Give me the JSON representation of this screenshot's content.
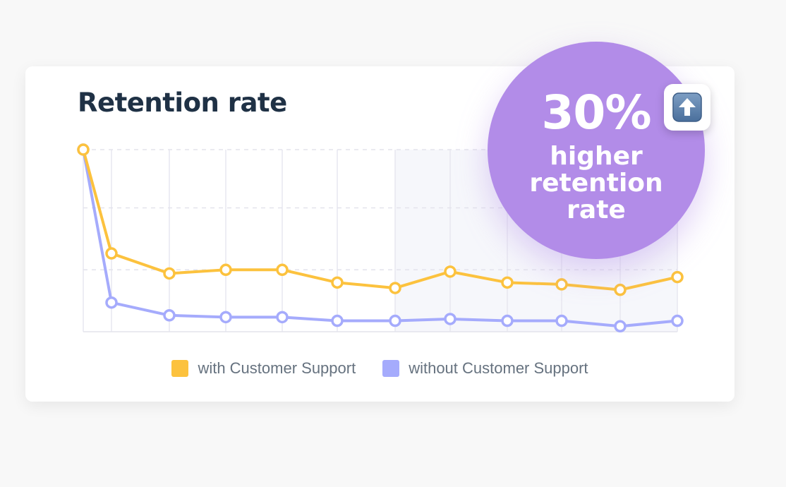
{
  "title": "Retention rate",
  "highlight": {
    "percent": "30%",
    "line1": "higher",
    "line2": "retention",
    "line3": "rate",
    "icon": "up-arrow-icon"
  },
  "colors": {
    "with_support": "#fcc23e",
    "without_support": "#a5abfc",
    "bubble": "#b28ce8",
    "title": "#1f3145"
  },
  "chart_data": {
    "type": "line",
    "title": "Retention rate",
    "xlabel": "",
    "ylabel": "",
    "x": [
      0,
      1,
      2,
      3,
      4,
      5,
      6,
      7,
      8,
      9,
      10,
      11
    ],
    "ylim": [
      0,
      100
    ],
    "grid": true,
    "legend": "bottom",
    "series": [
      {
        "name": "with Customer Support",
        "values": [
          100,
          43,
          32,
          34,
          34,
          27,
          24,
          33,
          27,
          26,
          23,
          30
        ]
      },
      {
        "name": "without Customer Support",
        "values": [
          100,
          16,
          9,
          8,
          8,
          6,
          6,
          7,
          6,
          6,
          3,
          6
        ]
      }
    ]
  }
}
